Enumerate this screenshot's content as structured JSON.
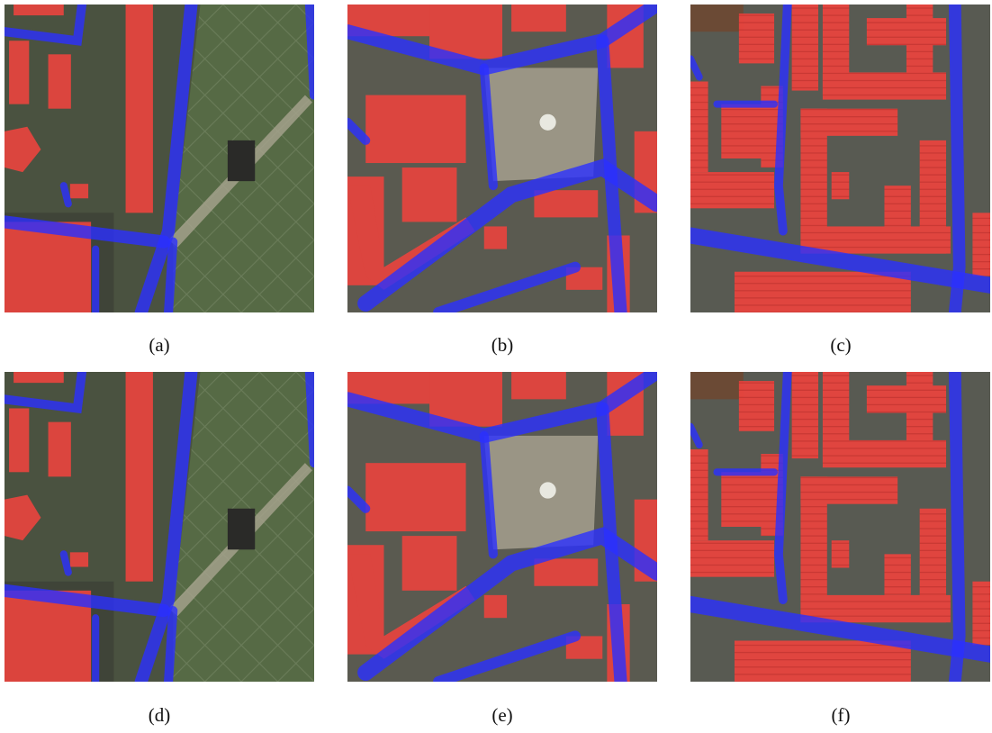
{
  "captions": [
    "(a)",
    "(b)",
    "(c)",
    "(d)",
    "(e)",
    "(f)"
  ]
}
